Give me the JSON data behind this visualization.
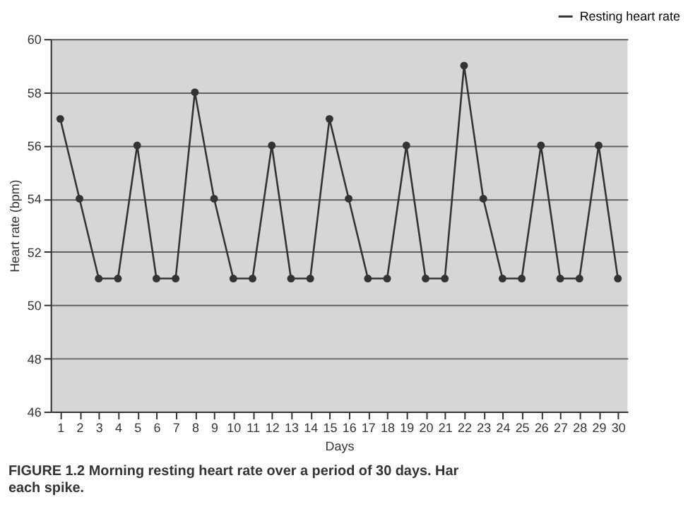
{
  "chart_data": {
    "type": "line",
    "x": [
      1,
      2,
      3,
      4,
      5,
      6,
      7,
      8,
      9,
      10,
      11,
      12,
      13,
      14,
      15,
      16,
      17,
      18,
      19,
      20,
      21,
      22,
      23,
      24,
      25,
      26,
      27,
      28,
      29,
      30
    ],
    "series": [
      {
        "name": "Resting heart rate",
        "color": "#333333",
        "values": [
          57,
          54,
          51,
          51,
          56,
          51,
          51,
          58,
          54,
          51,
          51,
          56,
          51,
          51,
          57,
          54,
          51,
          51,
          56,
          51,
          51,
          59,
          54,
          51,
          51,
          56,
          51,
          51,
          56,
          51
        ]
      }
    ],
    "xlabel": "Days",
    "ylabel": "Heart rate (bpm)",
    "xlim": [
      0.5,
      30.5
    ],
    "xticks": [
      1,
      2,
      3,
      4,
      5,
      6,
      7,
      8,
      9,
      10,
      11,
      12,
      13,
      14,
      15,
      16,
      17,
      18,
      19,
      20,
      21,
      22,
      23,
      24,
      25,
      26,
      27,
      28,
      29,
      30
    ],
    "ylim": [
      46,
      60
    ],
    "yticks": [
      46,
      48,
      50,
      52,
      54,
      56,
      58,
      60
    ],
    "grid": "y",
    "legend": "top right",
    "marker": "circle",
    "line_style": "solid",
    "annotations": [
      "FIGURE 1.2  Morning resting heart rate over a period of 30 days. Har",
      "each spike."
    ]
  }
}
